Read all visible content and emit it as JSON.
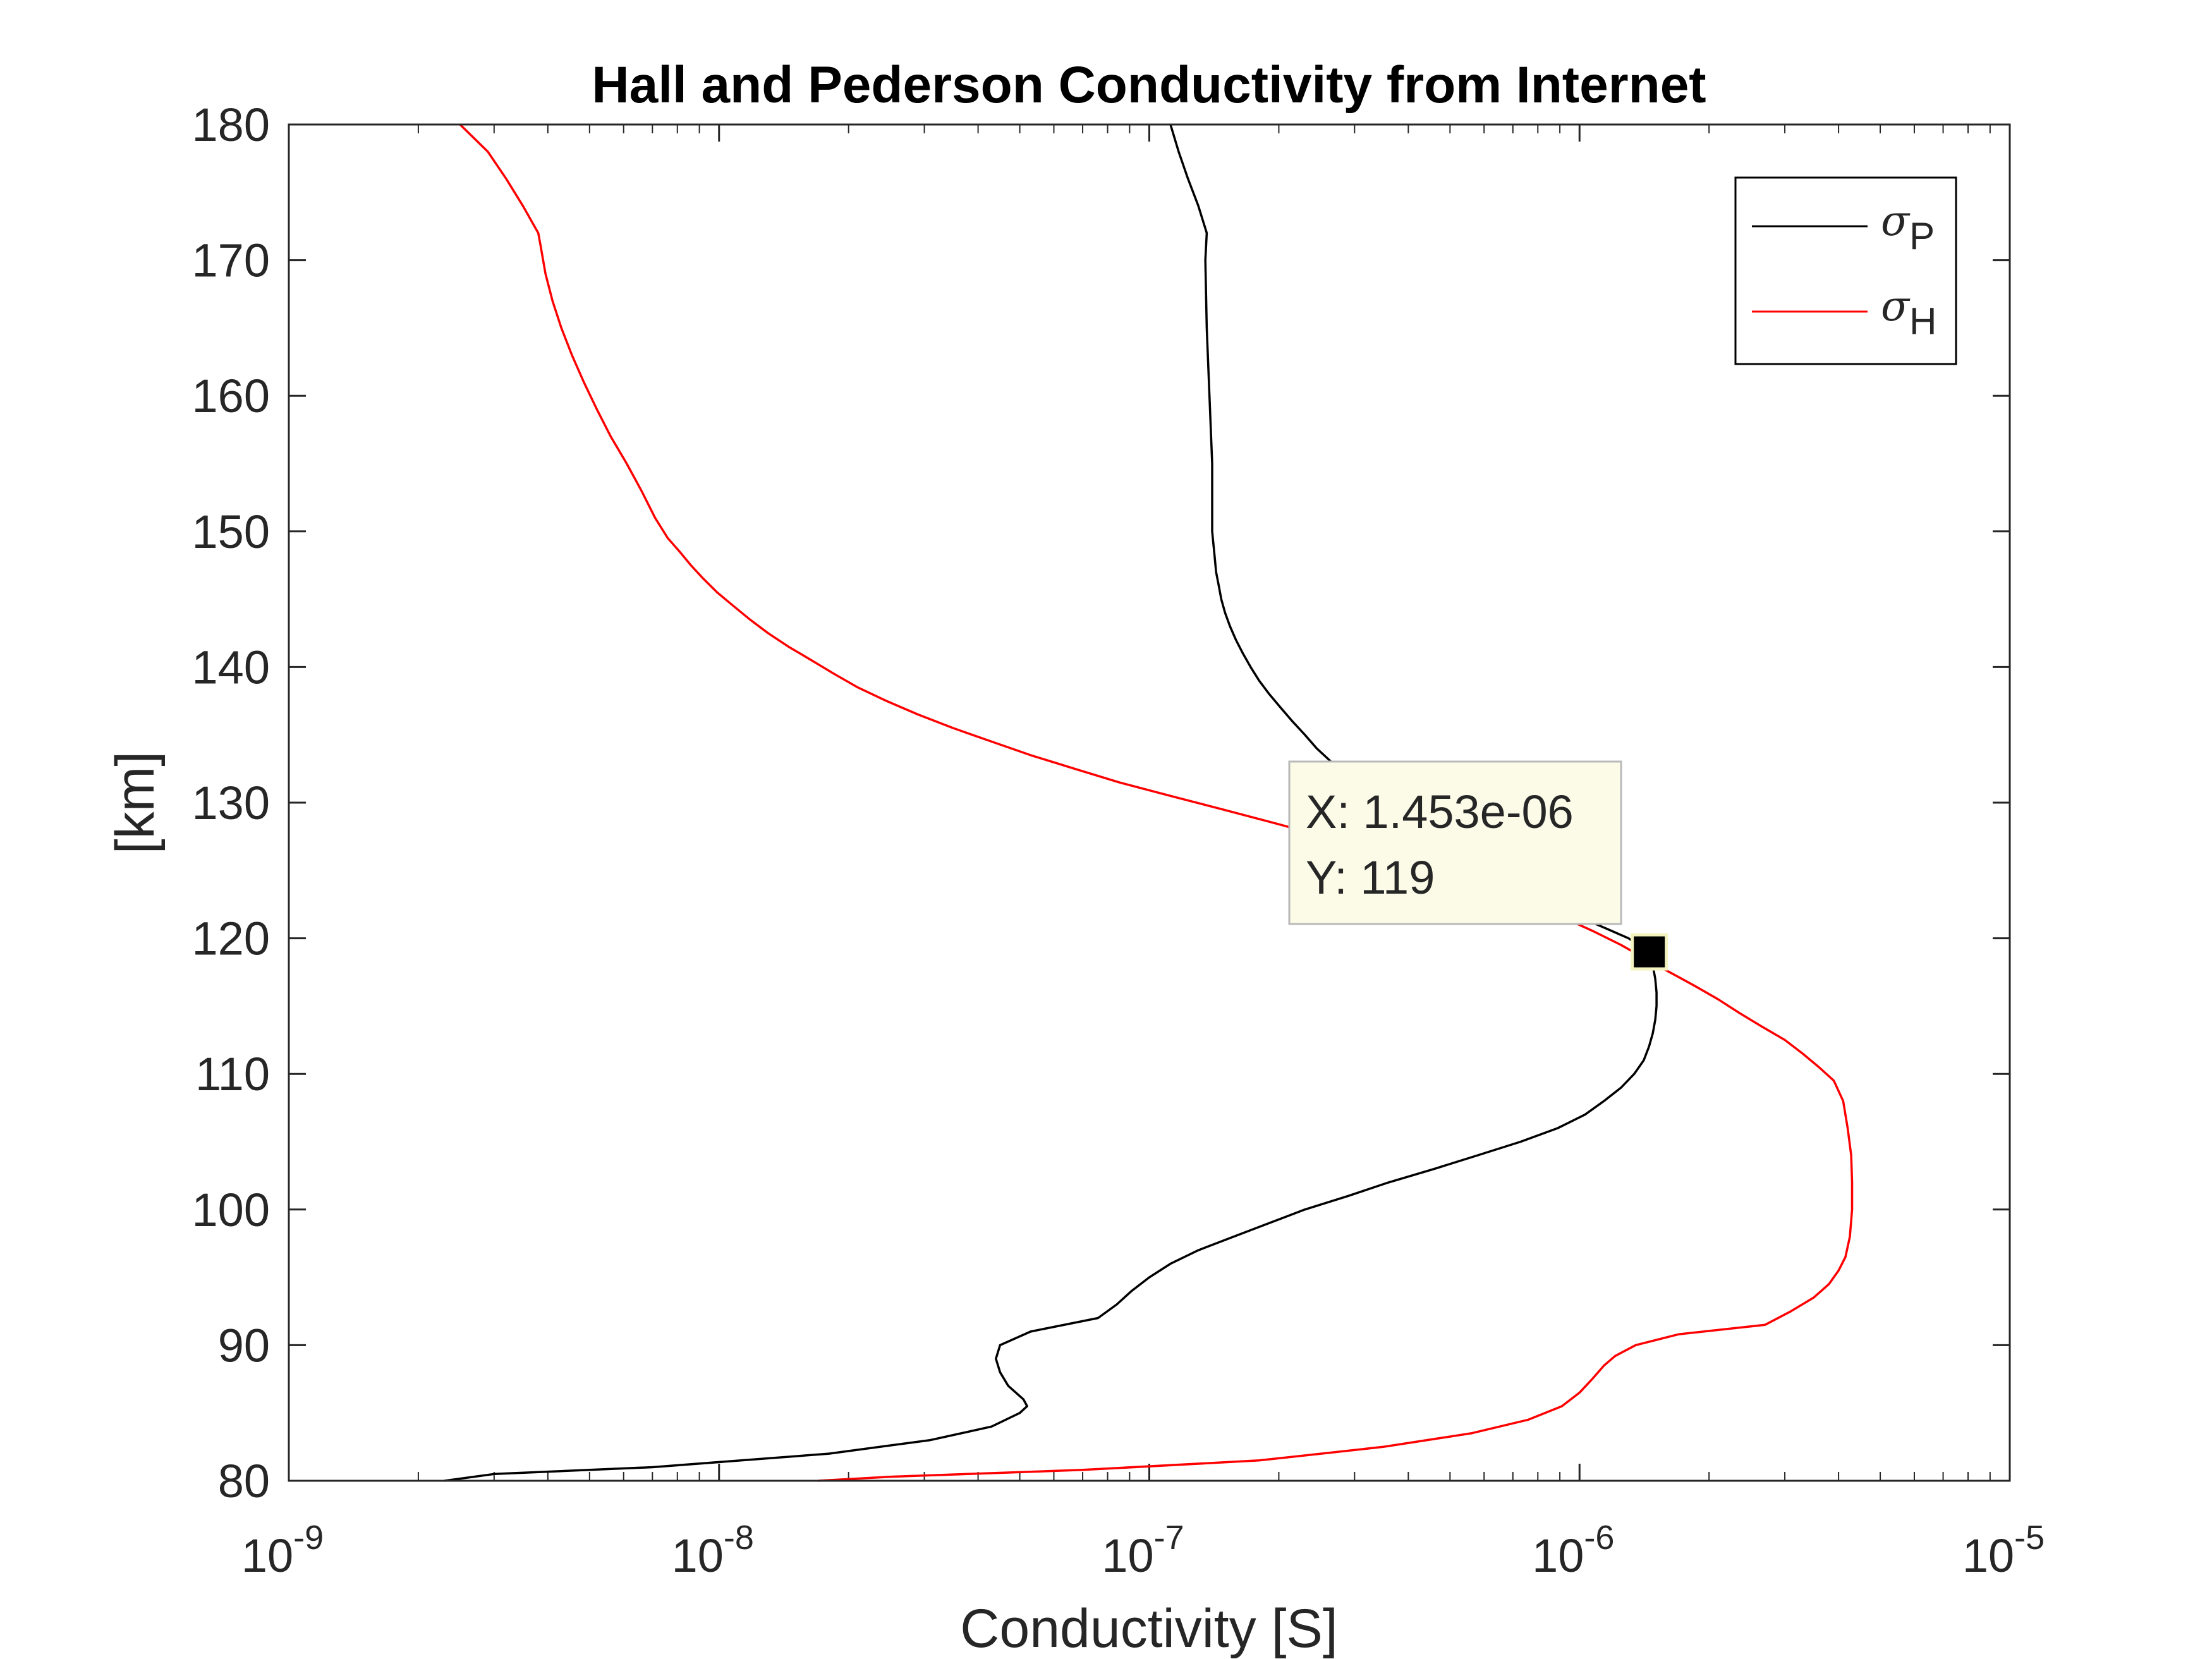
{
  "chart_data": {
    "type": "line",
    "title": "Hall and Pederson Conductivity from Internet",
    "xlabel": "Conductivity [S]",
    "ylabel": "[km]",
    "xscale": "log",
    "xlim": [
      1e-09,
      1e-05
    ],
    "ylim": [
      80,
      180
    ],
    "x_ticks": [
      {
        "base": "10",
        "exp": "-9",
        "value": 1e-09
      },
      {
        "base": "10",
        "exp": "-8",
        "value": 1e-08
      },
      {
        "base": "10",
        "exp": "-7",
        "value": 1e-07
      },
      {
        "base": "10",
        "exp": "-6",
        "value": 1e-06
      },
      {
        "base": "10",
        "exp": "-5",
        "value": 1e-05
      }
    ],
    "y_ticks": [
      "80",
      "90",
      "100",
      "110",
      "120",
      "130",
      "140",
      "150",
      "160",
      "170",
      "180"
    ],
    "grid": false,
    "legend": {
      "placement": "top-right",
      "entries": [
        {
          "symbol": "σ",
          "sub": "P",
          "color": "#000000"
        },
        {
          "symbol": "σ",
          "sub": "H",
          "color": "#ff0000"
        }
      ]
    },
    "series": [
      {
        "color": "#000000",
        "points": [
          [
            2.3e-09,
            80
          ],
          [
            3e-09,
            80.5
          ],
          [
            7e-09,
            81
          ],
          [
            1.8e-08,
            82
          ],
          [
            3.1e-08,
            83
          ],
          [
            4.3e-08,
            84
          ],
          [
            5e-08,
            85
          ],
          [
            5.2e-08,
            85.5
          ],
          [
            5.1e-08,
            86
          ],
          [
            4.7e-08,
            87
          ],
          [
            4.5e-08,
            88
          ],
          [
            4.4e-08,
            89
          ],
          [
            4.5e-08,
            90
          ],
          [
            5.3e-08,
            91
          ],
          [
            7.6e-08,
            92
          ],
          [
            8.4e-08,
            93
          ],
          [
            9.1e-08,
            94
          ],
          [
            1e-07,
            95
          ],
          [
            1.12e-07,
            96
          ],
          [
            1.3e-07,
            97
          ],
          [
            1.57e-07,
            98
          ],
          [
            1.9e-07,
            99
          ],
          [
            2.3e-07,
            100
          ],
          [
            2.9e-07,
            101
          ],
          [
            3.6e-07,
            102
          ],
          [
            4.6e-07,
            103
          ],
          [
            5.8e-07,
            104
          ],
          [
            7.3e-07,
            105
          ],
          [
            8.9e-07,
            106
          ],
          [
            1.03e-06,
            107
          ],
          [
            1.14e-06,
            108
          ],
          [
            1.25e-06,
            109
          ],
          [
            1.34e-06,
            110
          ],
          [
            1.41e-06,
            111
          ],
          [
            1.45e-06,
            112
          ],
          [
            1.48e-06,
            113
          ],
          [
            1.5e-06,
            114
          ],
          [
            1.51e-06,
            115
          ],
          [
            1.51e-06,
            116
          ],
          [
            1.5e-06,
            117
          ],
          [
            1.48e-06,
            118
          ],
          [
            1.453e-06,
            119
          ],
          [
            1.3e-06,
            120
          ],
          [
            1.1e-06,
            121
          ],
          [
            9.2e-07,
            122
          ],
          [
            7.8e-07,
            123
          ],
          [
            6.6e-07,
            124
          ],
          [
            5.7e-07,
            125
          ],
          [
            4.9e-07,
            126
          ],
          [
            4.3e-07,
            127
          ],
          [
            3.9e-07,
            128
          ],
          [
            3.6e-07,
            129
          ],
          [
            3.3e-07,
            130
          ],
          [
            3.1e-07,
            131
          ],
          [
            2.85e-07,
            132
          ],
          [
            2.65e-07,
            133
          ],
          [
            2.45e-07,
            134
          ],
          [
            2.3e-07,
            135
          ],
          [
            2.15e-07,
            136
          ],
          [
            2.02e-07,
            137
          ],
          [
            1.9e-07,
            138
          ],
          [
            1.8e-07,
            139
          ],
          [
            1.72e-07,
            140
          ],
          [
            1.65e-07,
            141
          ],
          [
            1.59e-07,
            142
          ],
          [
            1.54e-07,
            143
          ],
          [
            1.5e-07,
            144
          ],
          [
            1.47e-07,
            145
          ],
          [
            1.45e-07,
            146
          ],
          [
            1.43e-07,
            147
          ],
          [
            1.42e-07,
            148
          ],
          [
            1.41e-07,
            149
          ],
          [
            1.4e-07,
            150
          ],
          [
            1.4e-07,
            155
          ],
          [
            1.38e-07,
            160
          ],
          [
            1.36e-07,
            165
          ],
          [
            1.35e-07,
            170
          ],
          [
            1.36e-07,
            172
          ],
          [
            1.3e-07,
            174
          ],
          [
            1.23e-07,
            176
          ],
          [
            1.17e-07,
            178
          ],
          [
            1.12e-07,
            180
          ]
        ]
      },
      {
        "color": "#ff0000",
        "points": [
          [
            1.7e-08,
            80
          ],
          [
            2.5e-08,
            80.3
          ],
          [
            7e-08,
            80.8
          ],
          [
            1.8e-07,
            81.5
          ],
          [
            3.5e-07,
            82.5
          ],
          [
            5.6e-07,
            83.5
          ],
          [
            7.6e-07,
            84.5
          ],
          [
            9.1e-07,
            85.5
          ],
          [
            1e-06,
            86.5
          ],
          [
            1.07e-06,
            87.5
          ],
          [
            1.14e-06,
            88.5
          ],
          [
            1.21e-06,
            89.2
          ],
          [
            1.35e-06,
            90
          ],
          [
            1.7e-06,
            90.8
          ],
          [
            2.7e-06,
            91.5
          ],
          [
            3.1e-06,
            92.5
          ],
          [
            3.5e-06,
            93.5
          ],
          [
            3.8e-06,
            94.5
          ],
          [
            4e-06,
            95.5
          ],
          [
            4.15e-06,
            96.5
          ],
          [
            4.25e-06,
            98
          ],
          [
            4.3e-06,
            100
          ],
          [
            4.3e-06,
            102
          ],
          [
            4.28e-06,
            104
          ],
          [
            4.2e-06,
            106
          ],
          [
            4.1e-06,
            108
          ],
          [
            3.9e-06,
            109.5
          ],
          [
            3.6e-06,
            110.5
          ],
          [
            3.3e-06,
            111.5
          ],
          [
            3e-06,
            112.5
          ],
          [
            2.65e-06,
            113.5
          ],
          [
            2.35e-06,
            114.5
          ],
          [
            2.1e-06,
            115.5
          ],
          [
            1.85e-06,
            116.5
          ],
          [
            1.62e-06,
            117.5
          ],
          [
            1.42e-06,
            118.5
          ],
          [
            1.25e-06,
            119.5
          ],
          [
            1.08e-06,
            120.5
          ],
          [
            9.2e-07,
            121.5
          ],
          [
            7.8e-07,
            122.5
          ],
          [
            6.4e-07,
            123.5
          ],
          [
            5.2e-07,
            124.5
          ],
          [
            4.2e-07,
            125.5
          ],
          [
            3.3e-07,
            126.5
          ],
          [
            2.55e-07,
            127.5
          ],
          [
            1.95e-07,
            128.5
          ],
          [
            1.48e-07,
            129.5
          ],
          [
            1.12e-07,
            130.5
          ],
          [
            8.5e-08,
            131.5
          ],
          [
            6.7e-08,
            132.5
          ],
          [
            5.3e-08,
            133.5
          ],
          [
            4.3e-08,
            134.5
          ],
          [
            3.5e-08,
            135.5
          ],
          [
            2.9e-08,
            136.5
          ],
          [
            2.45e-08,
            137.5
          ],
          [
            2.1e-08,
            138.5
          ],
          [
            1.85e-08,
            139.5
          ],
          [
            1.64e-08,
            140.5
          ],
          [
            1.45e-08,
            141.5
          ],
          [
            1.3e-08,
            142.5
          ],
          [
            1.18e-08,
            143.5
          ],
          [
            1.08e-08,
            144.5
          ],
          [
            9.9e-09,
            145.5
          ],
          [
            9.2e-09,
            146.5
          ],
          [
            8.6e-09,
            147.5
          ],
          [
            8.1e-09,
            148.5
          ],
          [
            7.6e-09,
            149.5
          ],
          [
            7.1e-09,
            151
          ],
          [
            6.6e-09,
            153
          ],
          [
            6.1e-09,
            155
          ],
          [
            5.6e-09,
            157
          ],
          [
            5.2e-09,
            159
          ],
          [
            4.85e-09,
            161
          ],
          [
            4.55e-09,
            163
          ],
          [
            4.3e-09,
            165
          ],
          [
            4.1e-09,
            167
          ],
          [
            3.95e-09,
            169
          ],
          [
            3.85e-09,
            171
          ],
          [
            3.8e-09,
            172
          ],
          [
            3.5e-09,
            174
          ],
          [
            3.2e-09,
            176
          ],
          [
            2.9e-09,
            178
          ],
          [
            2.5e-09,
            180
          ]
        ]
      }
    ],
    "datatip": {
      "x": 1.453e-06,
      "y": 119,
      "x_text": "X: 1.453e-06",
      "y_text": "Y: 119"
    }
  }
}
